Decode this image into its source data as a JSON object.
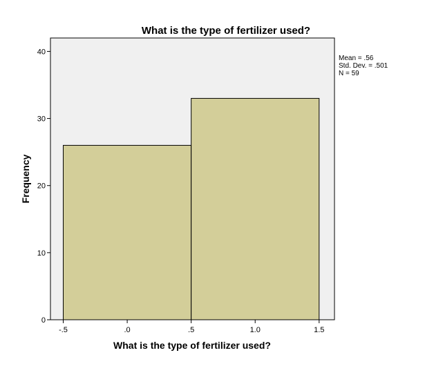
{
  "chart_data": {
    "type": "bar",
    "title": "What is the type of fertilizer used?",
    "xlabel": "What is the type of fertilizer used?",
    "ylabel": "Frequency",
    "bins": [
      {
        "start": -0.5,
        "end": 0.5,
        "value": 26
      },
      {
        "start": 0.5,
        "end": 1.5,
        "value": 33
      }
    ],
    "xlim": [
      -0.6,
      1.62
    ],
    "ylim": [
      0,
      42
    ],
    "x_ticks": [
      {
        "value": -0.5,
        "label": "-.5"
      },
      {
        "value": 0.0,
        "label": ".0"
      },
      {
        "value": 0.5,
        "label": ".5"
      },
      {
        "value": 1.0,
        "label": "1.0"
      },
      {
        "value": 1.5,
        "label": "1.5"
      }
    ],
    "y_ticks": [
      {
        "value": 0,
        "label": "0"
      },
      {
        "value": 10,
        "label": "10"
      },
      {
        "value": 20,
        "label": "20"
      },
      {
        "value": 30,
        "label": "30"
      },
      {
        "value": 40,
        "label": "40"
      }
    ],
    "stats": {
      "mean": "Mean = .56",
      "std_dev": "Std. Dev. = .501",
      "n": "N = 59"
    },
    "grid": false,
    "legend": "none",
    "colors": {
      "bar_fill": "#d3ce99",
      "bar_stroke": "#000000",
      "plot_background": "#f0f0f0",
      "page_background": "#ffffff"
    }
  }
}
